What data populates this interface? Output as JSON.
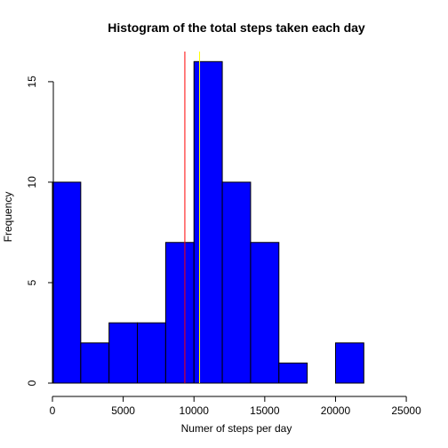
{
  "chart_data": {
    "type": "bar",
    "title": "Histogram of the total steps taken each day",
    "xlabel": "Numer of steps per day",
    "ylabel": "Frequency",
    "xlim": [
      0,
      26000
    ],
    "ylim": [
      0,
      16.5
    ],
    "x_ticks": [
      0,
      5000,
      10000,
      15000,
      20000,
      25000
    ],
    "x_tick_labels": [
      "0",
      "5000",
      "10000",
      "15000",
      "20000",
      "25000"
    ],
    "y_ticks": [
      0,
      5,
      10,
      15
    ],
    "y_tick_labels": [
      "0",
      "5",
      "10",
      "15"
    ],
    "bins": [
      {
        "start": 0,
        "end": 2000,
        "count": 10
      },
      {
        "start": 2000,
        "end": 4000,
        "count": 2
      },
      {
        "start": 4000,
        "end": 6000,
        "count": 3
      },
      {
        "start": 6000,
        "end": 8000,
        "count": 3
      },
      {
        "start": 8000,
        "end": 10000,
        "count": 7
      },
      {
        "start": 10000,
        "end": 12000,
        "count": 16
      },
      {
        "start": 12000,
        "end": 14000,
        "count": 10
      },
      {
        "start": 14000,
        "end": 16000,
        "count": 7
      },
      {
        "start": 16000,
        "end": 18000,
        "count": 1
      },
      {
        "start": 18000,
        "end": 20000,
        "count": 0
      },
      {
        "start": 20000,
        "end": 22000,
        "count": 2
      },
      {
        "start": 22000,
        "end": 24000,
        "count": 0
      },
      {
        "start": 24000,
        "end": 26000,
        "count": 0
      }
    ],
    "vlines": [
      {
        "x": 9354,
        "color": "#ff0000"
      },
      {
        "x": 10395,
        "color": "#ffff00"
      }
    ],
    "bar_color": "#0000ff",
    "grid": false
  }
}
